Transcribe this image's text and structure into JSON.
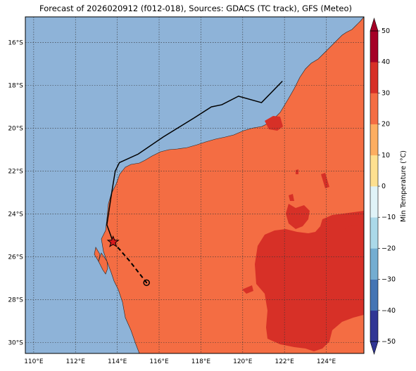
{
  "title": "Forecast of 2026020912 (f012-018), Sources: GDACS (TC track), GFS (Meteo)",
  "map": {
    "lon_range": [
      109.6,
      125.8
    ],
    "lat_range": [
      -30.5,
      -14.8
    ],
    "lon_ticks": [
      "110°E",
      "112°E",
      "114°E",
      "116°E",
      "118°E",
      "120°E",
      "122°E",
      "124°E"
    ],
    "lat_ticks": [
      "16°S",
      "18°S",
      "20°S",
      "22°S",
      "24°S",
      "26°S",
      "28°S",
      "30°S"
    ],
    "ocean_color": "#8eb3d8",
    "land_color": "#f46d43",
    "land_hot_color": "#d73027"
  },
  "track": {
    "observed": [
      [
        121.9,
        -17.8
      ],
      [
        120.9,
        -18.8
      ],
      [
        119.8,
        -18.5
      ],
      [
        119.0,
        -18.9
      ],
      [
        118.5,
        -19.0
      ],
      [
        117.7,
        -19.5
      ],
      [
        116.2,
        -20.4
      ],
      [
        115.0,
        -21.2
      ],
      [
        114.1,
        -21.6
      ],
      [
        113.9,
        -22.0
      ],
      [
        113.7,
        -23.2
      ],
      [
        113.5,
        -24.5
      ],
      [
        113.8,
        -25.3
      ]
    ],
    "forecast": [
      [
        113.8,
        -25.3
      ],
      [
        114.6,
        -26.2
      ],
      [
        115.4,
        -27.2
      ]
    ],
    "current_position": [
      113.8,
      -25.3
    ],
    "forecast_end": [
      115.4,
      -27.2
    ]
  },
  "colorbar": {
    "label": "Min Temperature (°C)",
    "ticks": [
      "50",
      "40",
      "30",
      "20",
      "10",
      "0",
      "−10",
      "−20",
      "−30",
      "−40",
      "−50"
    ],
    "colors": [
      "#313695",
      "#4575b4",
      "#74add1",
      "#abd9e9",
      "#e0f3f8",
      "#fee090",
      "#fdae61",
      "#f46d43",
      "#d73027",
      "#a50026"
    ]
  }
}
